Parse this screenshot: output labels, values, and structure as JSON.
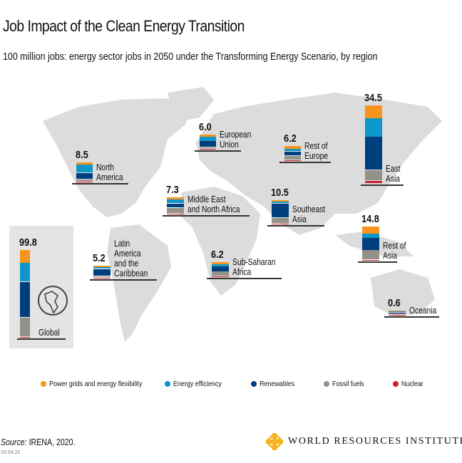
{
  "header": {
    "title": "Job Impact of the Clean Energy Transition",
    "subtitle": "100 million jobs: energy sector jobs in 2050 under the Transforming Energy Scenario, by region"
  },
  "chart_data": {
    "type": "bar",
    "subtype": "stacked, placed on world map",
    "title": "Job Impact of the Clean Energy Transition",
    "units": "million jobs",
    "series": [
      {
        "key": "grids",
        "name": "Power grids and energy flexibility",
        "color": "#f7941d"
      },
      {
        "key": "efficiency",
        "name": "Energy efficiency",
        "color": "#0f97cc"
      },
      {
        "key": "renewables",
        "name": "Renewables",
        "color": "#003f7d"
      },
      {
        "key": "fossil",
        "name": "Fossil fuels",
        "color": "#929289"
      },
      {
        "key": "nuclear",
        "name": "Nuclear",
        "color": "#d0202a"
      }
    ],
    "regions": [
      {
        "id": "global",
        "label": "Global",
        "total": "99.8",
        "values": [
          14.6,
          22.0,
          40.6,
          21.8,
          0.8
        ]
      },
      {
        "id": "north-america",
        "label": "North\nAmerica",
        "total": "8.5",
        "values": [
          1.0,
          3.6,
          2.9,
          0.8,
          0.2
        ]
      },
      {
        "id": "european-union",
        "label": "European\nUnion",
        "total": "6.0",
        "values": [
          0.8,
          2.0,
          2.7,
          0.4,
          0.1
        ]
      },
      {
        "id": "rest-of-europe",
        "label": "Rest of\nEurope",
        "total": "6.2",
        "values": [
          1.2,
          1.2,
          1.8,
          1.8,
          0.2
        ]
      },
      {
        "id": "mena",
        "label": "Middle East\nand North Africa",
        "total": "7.3",
        "values": [
          1.1,
          1.7,
          2.0,
          2.3,
          0.2
        ]
      },
      {
        "id": "southeast-asia",
        "label": "Southeast\nAsia",
        "total": "10.5",
        "values": [
          0.8,
          0.7,
          6.2,
          2.5,
          0.3
        ]
      },
      {
        "id": "east-asia",
        "label": "East\nAsia",
        "total": "34.5",
        "values": [
          5.6,
          8.4,
          14.6,
          4.7,
          1.2
        ]
      },
      {
        "id": "rest-of-asia",
        "label": "Rest of\nAsia",
        "total": "14.8",
        "values": [
          3.1,
          2.0,
          5.3,
          4.1,
          0.3
        ]
      },
      {
        "id": "latin-america",
        "label": "Latin\nAmerica\nand the\nCaribbean",
        "total": "5.2",
        "values": [
          0.7,
          1.0,
          3.1,
          0.3,
          0.1
        ]
      },
      {
        "id": "sub-saharan-africa",
        "label": "Sub-Saharan\nAfrica",
        "total": "6.2",
        "values": [
          1.0,
          1.0,
          2.2,
          1.9,
          0.1
        ]
      },
      {
        "id": "oceania",
        "label": "Oceania",
        "total": "0.6",
        "values": [
          0.1,
          0.1,
          0.2,
          0.1,
          0.1
        ]
      }
    ]
  },
  "footer": {
    "source_label": "Source:",
    "source_text": " IRENA, 2020.",
    "date": "20.04.22",
    "logo_text": "WORLD RESOURCES INSTITUTE"
  }
}
